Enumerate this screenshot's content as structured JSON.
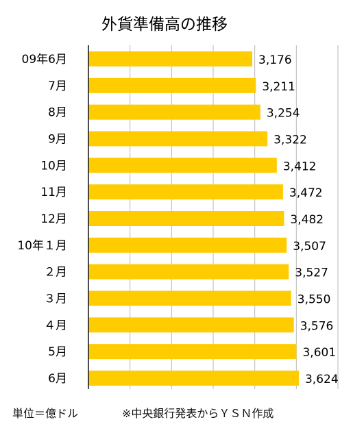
{
  "chart_data": {
    "type": "bar",
    "orientation": "horizontal",
    "title": "外貨準備高の推移",
    "categories": [
      "09年6月",
      "7月",
      "8月",
      "9月",
      "10月",
      "11月",
      "12月",
      "10年１月",
      "２月",
      "３月",
      "４月",
      "5月",
      "6月"
    ],
    "values": [
      3176,
      3211,
      3254,
      3322,
      3412,
      3472,
      3482,
      3507,
      3527,
      3550,
      3576,
      3601,
      3624
    ],
    "value_labels": [
      "3,176",
      "3,211",
      "3,254",
      "3,322",
      "3,412",
      "3,472",
      "3,482",
      "3,507",
      "3,527",
      "3,550",
      "3,576",
      "3,601",
      "3,624"
    ],
    "xlim": [
      1600,
      4000
    ],
    "gridlines": [
      2000,
      2400,
      2800,
      3200,
      3600,
      4000
    ],
    "grid": true,
    "legend": "none",
    "bar_color": "#FFCC00"
  },
  "footer": {
    "unit": "単位＝億ドル",
    "source": "※中央銀行発表からＹＳＮ作成"
  }
}
